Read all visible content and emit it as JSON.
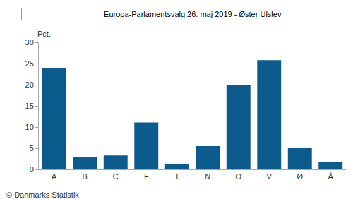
{
  "chart_data": {
    "type": "bar",
    "title": "Europa-Parlamentsvalg 26. maj 2019 - Øster Ulslev",
    "ylabel": "Pct.",
    "source": "© Danmarks Statistik",
    "categories": [
      "A",
      "B",
      "C",
      "F",
      "I",
      "N",
      "O",
      "V",
      "Ø",
      "Å"
    ],
    "values": [
      24.0,
      3.0,
      3.3,
      11.1,
      1.2,
      5.5,
      19.9,
      25.8,
      5.0,
      1.7
    ],
    "color": "#0b5b8c",
    "ylim": [
      0,
      30
    ],
    "yticks": [
      0,
      5,
      10,
      15,
      20,
      25,
      30
    ],
    "grid": false
  }
}
